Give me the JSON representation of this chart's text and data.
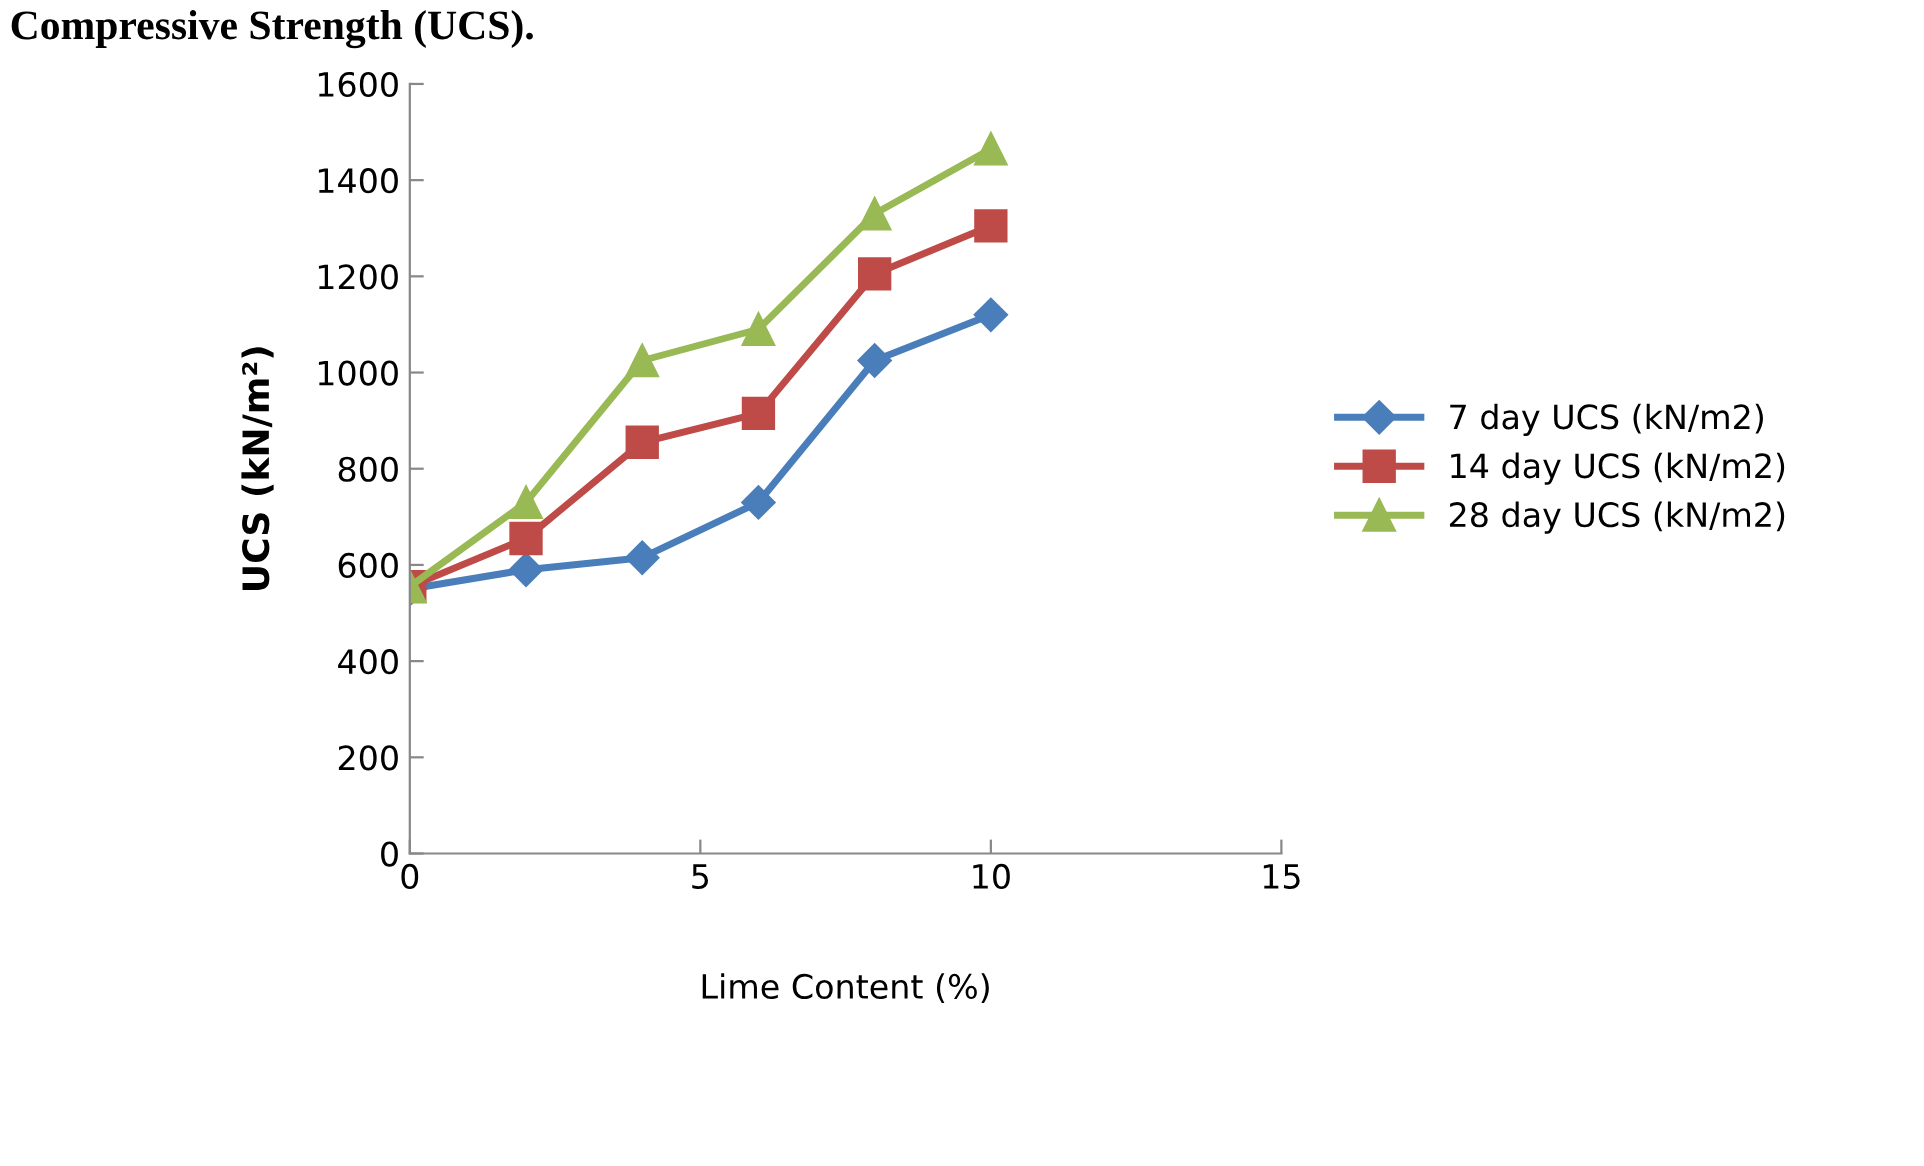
{
  "chart_data": {
    "type": "line",
    "title": "Compressive Strength (UCS).",
    "xlabel": "Lime Content (%)",
    "ylabel": "UCS (kN/m²)",
    "x": [
      0,
      2,
      4,
      6,
      8,
      10
    ],
    "series": [
      {
        "name": "7 day UCS (kN/m2)",
        "color": "#4a7ebb",
        "marker": "diamond",
        "values": [
          550,
          590,
          615,
          730,
          1025,
          1120
        ]
      },
      {
        "name": "14 day UCS (kN/m2)",
        "color": "#be4b48",
        "marker": "square",
        "values": [
          555,
          655,
          855,
          915,
          1205,
          1305
        ]
      },
      {
        "name": "28 day UCS (kN/m2)",
        "color": "#98b954",
        "marker": "triangle",
        "values": [
          555,
          730,
          1025,
          1090,
          1330,
          1465
        ]
      }
    ],
    "xlim": [
      0,
      15
    ],
    "xticks": [
      0,
      5,
      10,
      15
    ],
    "ylim": [
      0,
      1600
    ],
    "yticks": [
      0,
      200,
      400,
      600,
      800,
      1000,
      1200,
      1400,
      1600
    ],
    "grid": false,
    "legend": "right",
    "line_style": "solid"
  }
}
